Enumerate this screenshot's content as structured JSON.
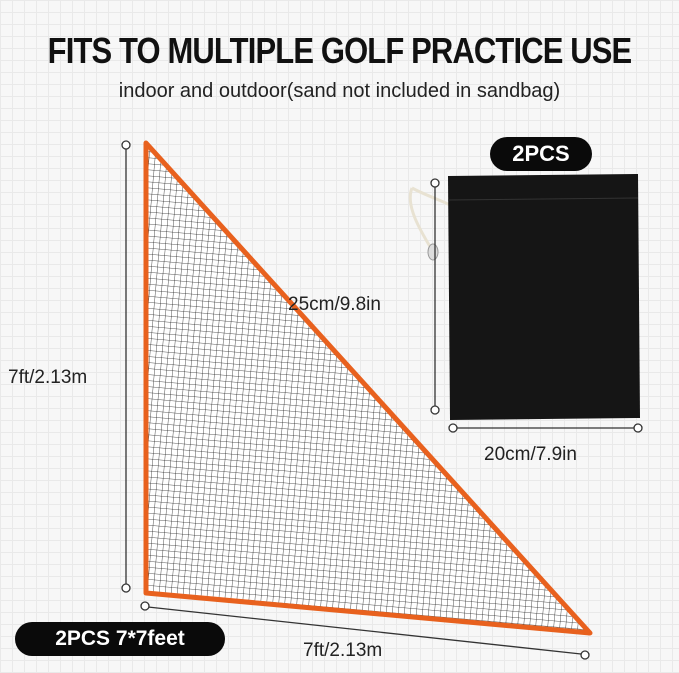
{
  "header": {
    "title": "FITS TO MULTIPLE GOLF PRACTICE USE",
    "subtitle": "indoor and outdoor(sand not included in sandbag)"
  },
  "bag": {
    "badge": "2PCS",
    "height_label": "25cm/9.8in",
    "width_label": "20cm/7.9in",
    "color": "#151515"
  },
  "net": {
    "badge": "2PCS 7*7feet",
    "height_label": "7ft/2.13m",
    "width_label": "7ft/2.13m",
    "border_color": "#e8611e"
  }
}
